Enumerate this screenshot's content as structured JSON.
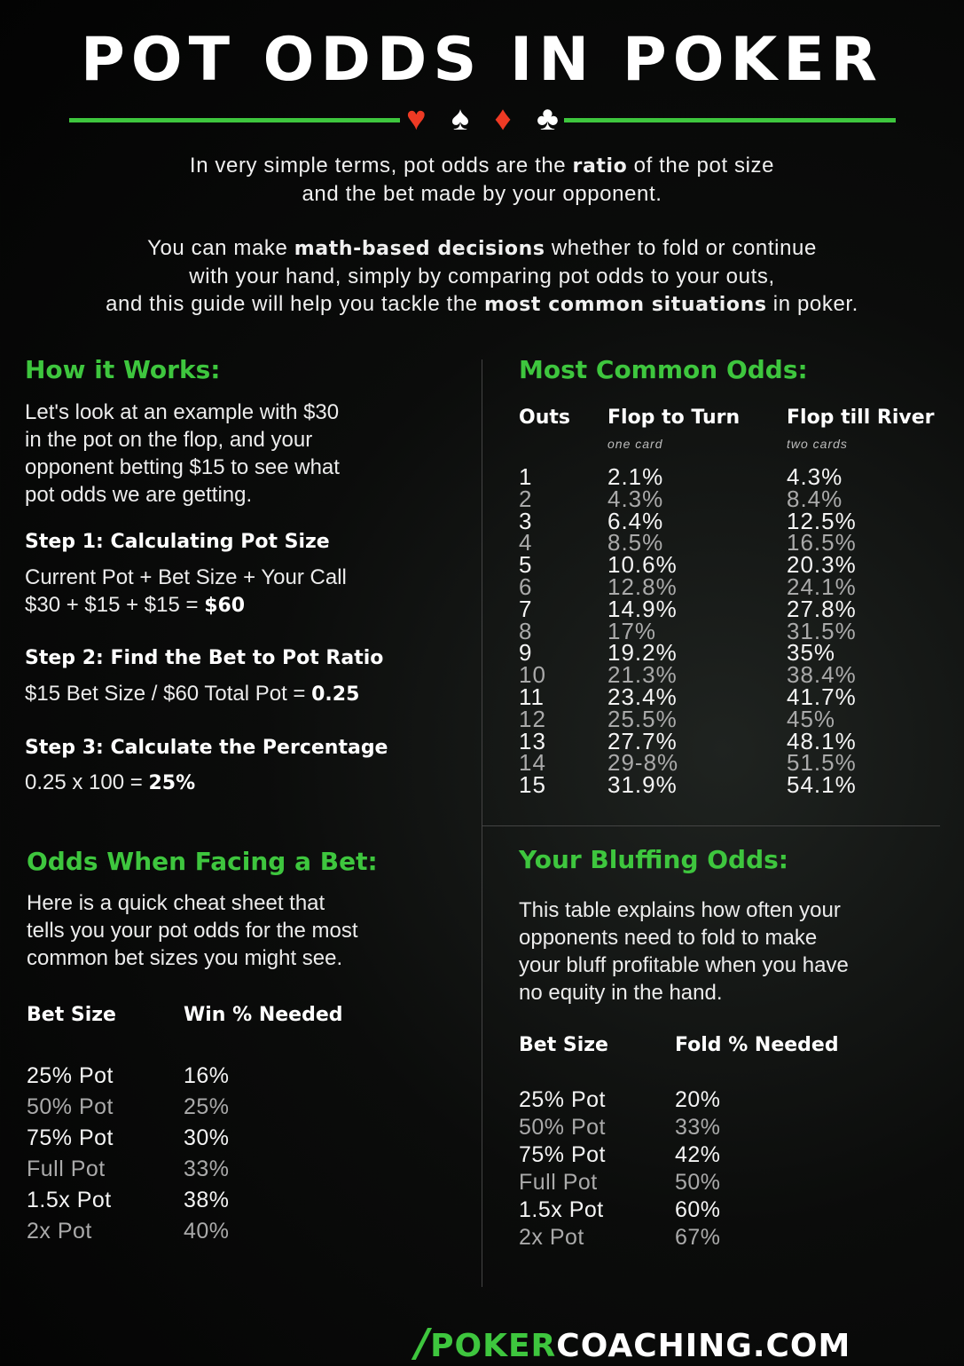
{
  "title": "POT ODDS IN POKER",
  "colors": {
    "accent": "#3ec63e",
    "suit_red": "#ee3a24",
    "background": "#0b0c0b"
  },
  "suits": [
    "heart-icon",
    "spade-icon",
    "diamond-icon",
    "club-icon"
  ],
  "intro": {
    "p1": [
      "In very simple terms, pot odds are the ",
      "ratio",
      " of the pot size",
      "and the bet made by your opponent."
    ],
    "p2": [
      "You can make ",
      "math-based decisions",
      " whether to fold or continue",
      "with your hand, simply by comparing pot odds to your outs,",
      "and this guide will help you tackle the ",
      "most common situations",
      " in poker."
    ]
  },
  "how": {
    "heading": "How it Works:",
    "lines": [
      "Let's look at an example with $30",
      "in the pot on the flop, and your",
      "opponent betting $15 to see what",
      "pot odds we are getting."
    ],
    "step1": {
      "title": "Step 1: Calculating Pot Size",
      "line1": "Current Pot + Bet Size + Your Call",
      "line2": "$30 + $15 + $15 = ",
      "result": "$60"
    },
    "step2": {
      "title": "Step 2: Find the Bet to Pot Ratio",
      "line1": "$15 Bet Size / $60 Total Pot = ",
      "result": "0.25"
    },
    "step3": {
      "title": "Step 3: Calculate the Percentage",
      "line1": "0.25 x 100 = ",
      "result": "25%"
    }
  },
  "common": {
    "heading": "Most Common Odds:",
    "headers": [
      "Outs",
      "Flop to Turn",
      "Flop till River"
    ],
    "subheaders": [
      "",
      "one card",
      "two cards"
    ],
    "rows": [
      [
        "1",
        "2.1%",
        "4.3%"
      ],
      [
        "2",
        "4.3%",
        "8.4%"
      ],
      [
        "3",
        "6.4%",
        "12.5%"
      ],
      [
        "4",
        "8.5%",
        "16.5%"
      ],
      [
        "5",
        "10.6%",
        "20.3%"
      ],
      [
        "6",
        "12.8%",
        "24.1%"
      ],
      [
        "7",
        "14.9%",
        "27.8%"
      ],
      [
        "8",
        "17%",
        "31.5%"
      ],
      [
        "9",
        "19.2%",
        "35%"
      ],
      [
        "10",
        "21.3%",
        "38.4%"
      ],
      [
        "11",
        "23.4%",
        "41.7%"
      ],
      [
        "12",
        "25.5%",
        "45%"
      ],
      [
        "13",
        "27.7%",
        "48.1%"
      ],
      [
        "14",
        "29-8%",
        "51.5%"
      ],
      [
        "15",
        "31.9%",
        "54.1%"
      ]
    ]
  },
  "facing": {
    "heading": "Odds When Facing a Bet:",
    "lines": [
      "Here is a quick cheat sheet that",
      "tells you your pot odds for the most",
      "common bet sizes you might see."
    ],
    "headers": [
      "Bet Size",
      "Win % Needed"
    ],
    "rows": [
      [
        "25% Pot",
        "16%"
      ],
      [
        "50% Pot",
        "25%"
      ],
      [
        "75% Pot",
        "30%"
      ],
      [
        "Full Pot",
        "33%"
      ],
      [
        "1.5x Pot",
        "38%"
      ],
      [
        "2x Pot",
        "40%"
      ]
    ]
  },
  "bluff": {
    "heading": "Your Bluffing Odds:",
    "lines": [
      "This table explains how often your",
      "opponents need to fold to make",
      "your bluff profitable when you have",
      "no equity in the hand."
    ],
    "headers": [
      "Bet Size",
      "Fold % Needed"
    ],
    "rows": [
      [
        "25% Pot",
        "20%"
      ],
      [
        "50% Pot",
        "33%"
      ],
      [
        "75% Pot",
        "42%"
      ],
      [
        "Full Pot",
        "50%"
      ],
      [
        "1.5x Pot",
        "60%"
      ],
      [
        "2x Pot",
        "67%"
      ]
    ]
  },
  "logo": {
    "part1": "POKER",
    "part2": "COACHING.COM"
  }
}
